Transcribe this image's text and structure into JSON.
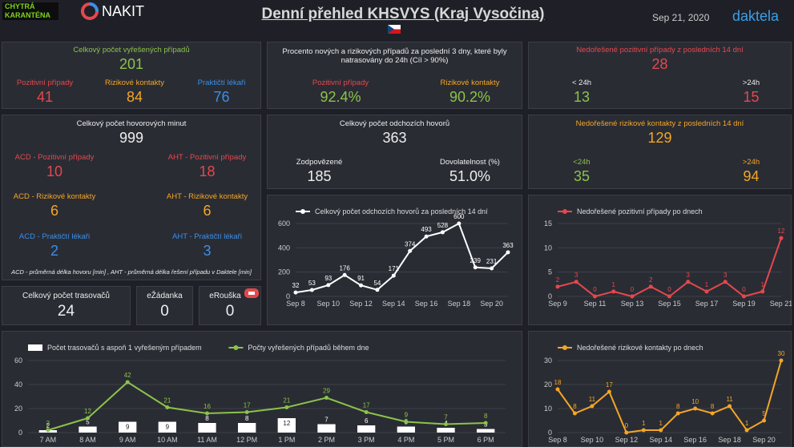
{
  "header": {
    "logo": "CHYTRÁ KARANTÉNA",
    "brand_left": "NAKIT",
    "title": "Denní přehled KHSVYS (Kraj Vysočina)",
    "date": "Sep 21, 2020",
    "brand_right": "daktela"
  },
  "panels": {
    "resolved": {
      "label": "Celkový počet vyřešených případů",
      "value": 201,
      "positive": {
        "label": "Pozitivní případy",
        "value": 41
      },
      "contacts": {
        "label": "Rizikové kontakty",
        "value": 84
      },
      "doctors": {
        "label": "Praktičtí lékaři",
        "value": 76
      }
    },
    "traced": {
      "label": "Procento nových a rizikových případů za poslední 3 dny, které byly natrasovány do 24h (Cíl > 90%)",
      "positive": {
        "label": "Pozitivní případy",
        "value": "92.4%"
      },
      "contacts": {
        "label": "Rizikové kontakty",
        "value": "90.2%"
      }
    },
    "open_positive": {
      "label": "Nedořešené pozitivní případy z posledních 14 dní",
      "value": 28,
      "under": {
        "label": "< 24h",
        "value": 13
      },
      "over": {
        "label": ">24h",
        "value": 15
      }
    },
    "minutes": {
      "label": "Celkový počet hovorových minut",
      "value": 999,
      "acd_positive": {
        "label": "ACD - Pozitivní případy",
        "value": 10
      },
      "aht_positive": {
        "label": "AHT - Pozitivní případy",
        "value": 18
      },
      "acd_contacts": {
        "label": "ACD - Rizikové kontakty",
        "value": 6
      },
      "aht_contacts": {
        "label": "AHT - Rizikové kontakty",
        "value": 6
      },
      "acd_doctors": {
        "label": "ACD - Praktičtí lékaři",
        "value": 2
      },
      "aht_doctors": {
        "label": "AHT - Praktičtí lékaři",
        "value": 3
      },
      "note": "ACD - průměrná délka hovoru [min] , AHT - průměrná délka řešení případu v Daktele [min]"
    },
    "calls": {
      "label": "Celkový počet odchozích hovorů",
      "value": 363,
      "answered": {
        "label": "Zodpovězené",
        "value": 185
      },
      "reach": {
        "label": "Dovolatelnost (%)",
        "value": "51.0%"
      }
    },
    "open_contacts": {
      "label": "Nedořešené rizikové kontakty z posledních 14 dní",
      "value": 129,
      "under": {
        "label": "<24h",
        "value": 35
      },
      "over": {
        "label": ">24h",
        "value": 94
      }
    },
    "tracers": {
      "label": "Celkový počet trasovačů",
      "value": 24
    },
    "ezadanka": {
      "label": "eŽádanka",
      "value": 0
    },
    "erouska": {
      "label": "eRouška",
      "value": 0
    }
  },
  "chart_data": [
    {
      "type": "line",
      "categories": [
        "Sep 8",
        null,
        "Sep 10",
        null,
        "Sep 12",
        null,
        "Sep 14",
        null,
        "Sep 16",
        null,
        "Sep 18",
        null,
        "Sep 20",
        null
      ],
      "series": [
        {
          "name": "Celkový počet odchozích hovorů za posledních 14 dní",
          "color": "#ffffff",
          "values": [
            32,
            53,
            93,
            176,
            91,
            54,
            171,
            374,
            493,
            528,
            600,
            239,
            231,
            363
          ]
        }
      ],
      "ylim": [
        0,
        600
      ],
      "yticks": [
        0,
        200,
        400,
        600
      ],
      "grid": true
    },
    {
      "type": "line",
      "categories": [
        "Sep 9",
        null,
        "Sep 11",
        null,
        "Sep 13",
        null,
        "Sep 15",
        null,
        "Sep 17",
        null,
        "Sep 19",
        null,
        "Sep 21"
      ],
      "series": [
        {
          "name": "Nedořešené pozitivní případy po dnech",
          "color": "#e5484d",
          "values": [
            2,
            3,
            0,
            1,
            0,
            2,
            0,
            3,
            1,
            3,
            0,
            1,
            12
          ]
        }
      ],
      "ylim": [
        0,
        15
      ],
      "yticks": [
        0,
        5,
        10,
        15
      ],
      "grid": true
    },
    {
      "type": "bar",
      "categories": [
        "7 AM",
        "8 AM",
        "9 AM",
        "10 AM",
        "11 AM",
        "12 PM",
        "1 PM",
        "2 PM",
        "3 PM",
        "4 PM",
        "5 PM",
        "6 PM"
      ],
      "series": [
        {
          "name": "Počet trasovačů s aspoň 1 vyřešeným případem",
          "color": "#ffffff",
          "type": "bar",
          "values": [
            2,
            5,
            9,
            9,
            8,
            8,
            12,
            7,
            6,
            5,
            4,
            3
          ]
        },
        {
          "name": "Počty vyřešených případů během dne",
          "color": "#8bc34a",
          "type": "line",
          "values": [
            2,
            12,
            42,
            21,
            16,
            17,
            21,
            29,
            17,
            9,
            7,
            8
          ]
        }
      ],
      "ylim": [
        0,
        60
      ],
      "yticks": [
        0,
        20,
        40,
        60
      ],
      "grid": true
    },
    {
      "type": "line",
      "categories": [
        "Sep 8",
        null,
        "Sep 10",
        null,
        "Sep 12",
        null,
        "Sep 14",
        null,
        "Sep 16",
        null,
        "Sep 18",
        null,
        "Sep 20",
        null
      ],
      "series": [
        {
          "name": "Nedořešené rizikové kontakty po dnech",
          "color": "#f5a623",
          "values": [
            18,
            8,
            11,
            17,
            0,
            1,
            1,
            8,
            10,
            8,
            11,
            1,
            5,
            30
          ]
        }
      ],
      "ylim": [
        0,
        30
      ],
      "yticks": [
        0,
        10,
        20,
        30
      ],
      "grid": true
    }
  ]
}
